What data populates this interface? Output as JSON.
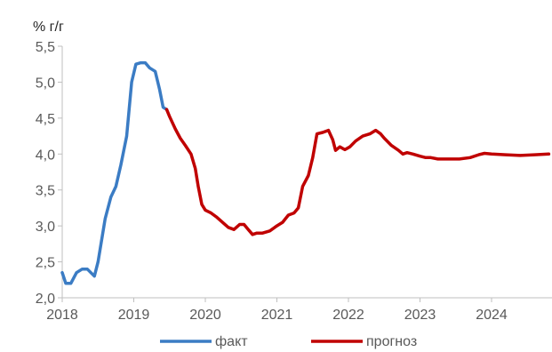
{
  "chart_data": {
    "type": "line",
    "ylabel": "% г/г",
    "ylim": [
      2.0,
      5.5
    ],
    "yticks": [
      {
        "value": 2.0,
        "label": "2,0"
      },
      {
        "value": 2.5,
        "label": "2,5"
      },
      {
        "value": 3.0,
        "label": "3,0"
      },
      {
        "value": 3.5,
        "label": "3,5"
      },
      {
        "value": 4.0,
        "label": "4,0"
      },
      {
        "value": 4.5,
        "label": "4,5"
      },
      {
        "value": 5.0,
        "label": "5,0"
      },
      {
        "value": 5.5,
        "label": "5,5"
      }
    ],
    "xlim": [
      2018.0,
      2024.8
    ],
    "xticks": [
      "2018",
      "2019",
      "2020",
      "2021",
      "2022",
      "2023",
      "2024"
    ],
    "grid": false,
    "legend_position": "bottom",
    "series": [
      {
        "name": "факт",
        "color": "#3B7CC4",
        "points": [
          [
            2018.0,
            2.35
          ],
          [
            2018.05,
            2.2
          ],
          [
            2018.12,
            2.2
          ],
          [
            2018.2,
            2.35
          ],
          [
            2018.28,
            2.4
          ],
          [
            2018.35,
            2.4
          ],
          [
            2018.4,
            2.35
          ],
          [
            2018.45,
            2.3
          ],
          [
            2018.5,
            2.5
          ],
          [
            2018.55,
            2.8
          ],
          [
            2018.6,
            3.1
          ],
          [
            2018.68,
            3.4
          ],
          [
            2018.75,
            3.55
          ],
          [
            2018.82,
            3.85
          ],
          [
            2018.9,
            4.25
          ],
          [
            2018.97,
            5.0
          ],
          [
            2019.03,
            5.25
          ],
          [
            2019.1,
            5.27
          ],
          [
            2019.16,
            5.27
          ],
          [
            2019.22,
            5.2
          ],
          [
            2019.3,
            5.15
          ],
          [
            2019.36,
            4.9
          ],
          [
            2019.41,
            4.65
          ],
          [
            2019.46,
            4.62
          ]
        ]
      },
      {
        "name": "прогноз",
        "color": "#C00000",
        "points": [
          [
            2019.46,
            4.62
          ],
          [
            2019.5,
            4.52
          ],
          [
            2019.58,
            4.35
          ],
          [
            2019.65,
            4.22
          ],
          [
            2019.72,
            4.12
          ],
          [
            2019.8,
            4.0
          ],
          [
            2019.86,
            3.8
          ],
          [
            2019.9,
            3.55
          ],
          [
            2019.95,
            3.3
          ],
          [
            2020.0,
            3.22
          ],
          [
            2020.08,
            3.18
          ],
          [
            2020.16,
            3.12
          ],
          [
            2020.24,
            3.05
          ],
          [
            2020.32,
            2.98
          ],
          [
            2020.4,
            2.95
          ],
          [
            2020.48,
            3.02
          ],
          [
            2020.54,
            3.02
          ],
          [
            2020.6,
            2.95
          ],
          [
            2020.66,
            2.88
          ],
          [
            2020.72,
            2.9
          ],
          [
            2020.8,
            2.9
          ],
          [
            2020.9,
            2.93
          ],
          [
            2021.0,
            3.0
          ],
          [
            2021.08,
            3.05
          ],
          [
            2021.16,
            3.15
          ],
          [
            2021.24,
            3.18
          ],
          [
            2021.3,
            3.25
          ],
          [
            2021.36,
            3.55
          ],
          [
            2021.44,
            3.7
          ],
          [
            2021.5,
            3.95
          ],
          [
            2021.56,
            4.28
          ],
          [
            2021.64,
            4.3
          ],
          [
            2021.72,
            4.33
          ],
          [
            2021.78,
            4.2
          ],
          [
            2021.82,
            4.05
          ],
          [
            2021.88,
            4.1
          ],
          [
            2021.95,
            4.06
          ],
          [
            2022.02,
            4.1
          ],
          [
            2022.1,
            4.18
          ],
          [
            2022.2,
            4.25
          ],
          [
            2022.3,
            4.28
          ],
          [
            2022.38,
            4.33
          ],
          [
            2022.45,
            4.28
          ],
          [
            2022.5,
            4.22
          ],
          [
            2022.6,
            4.12
          ],
          [
            2022.7,
            4.05
          ],
          [
            2022.76,
            4.0
          ],
          [
            2022.82,
            4.02
          ],
          [
            2022.9,
            4.0
          ],
          [
            2023.0,
            3.97
          ],
          [
            2023.08,
            3.95
          ],
          [
            2023.15,
            3.95
          ],
          [
            2023.25,
            3.93
          ],
          [
            2023.4,
            3.93
          ],
          [
            2023.55,
            3.93
          ],
          [
            2023.7,
            3.95
          ],
          [
            2023.82,
            3.99
          ],
          [
            2023.9,
            4.01
          ],
          [
            2024.0,
            4.0
          ],
          [
            2024.2,
            3.99
          ],
          [
            2024.4,
            3.98
          ],
          [
            2024.6,
            3.99
          ],
          [
            2024.8,
            4.0
          ]
        ]
      }
    ]
  }
}
